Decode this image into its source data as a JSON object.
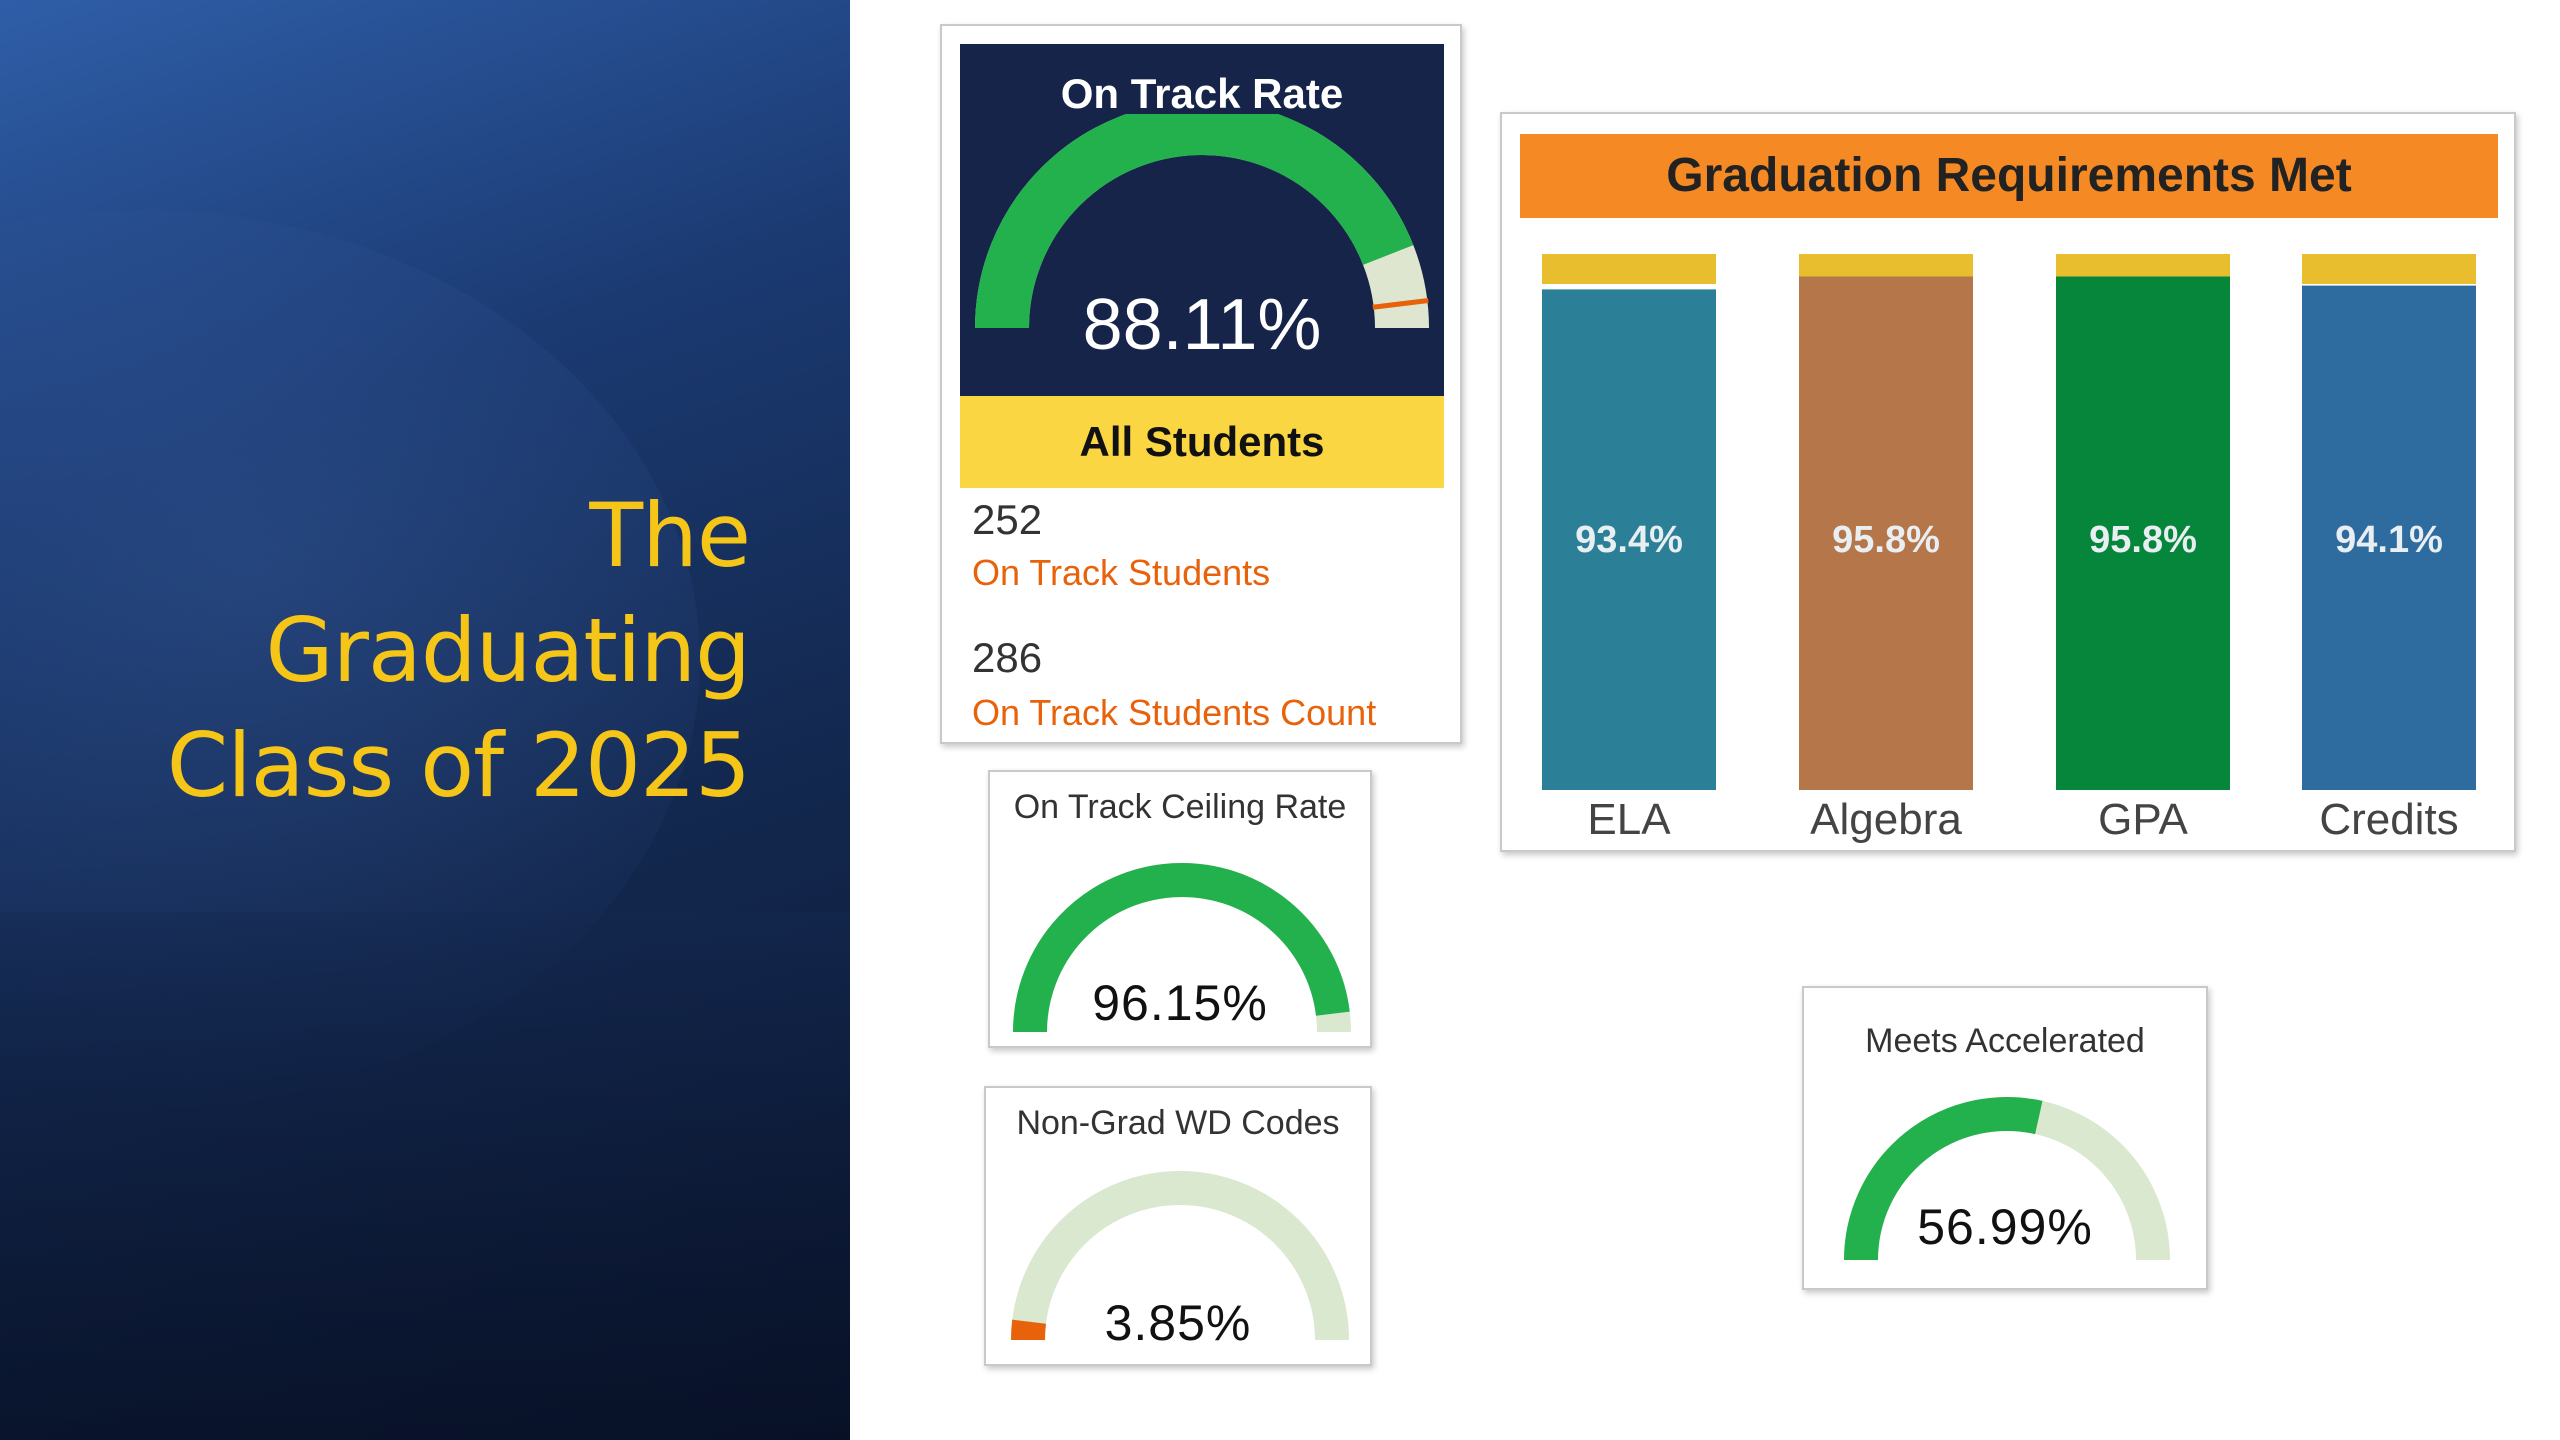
{
  "slide_title": {
    "line1": "The",
    "line2": "Graduating",
    "line3": "Class of 2025"
  },
  "on_track_rate": {
    "label": "On Track Rate",
    "value_text": "88.11%",
    "value_fraction": 0.8811,
    "group": "All Students",
    "on_track_students_value": "252",
    "on_track_students_label": "On Track Students",
    "on_track_count_value": "286",
    "on_track_count_label": "On Track Students Count"
  },
  "on_track_ceiling": {
    "label": "On Track Ceiling Rate",
    "value_text": "96.15%",
    "value_fraction": 0.9615
  },
  "non_grad": {
    "label": "Non-Grad WD Codes",
    "value_text": "3.85%",
    "value_fraction": 0.0385
  },
  "meets_accelerated": {
    "label": "Meets Accelerated",
    "value_text": "56.99%",
    "value_fraction": 0.5699
  },
  "colors": {
    "gauge_green": "#22b14c",
    "gauge_track": "#d9e8cf",
    "marker_orange": "#e8620c",
    "ela": "#2b7f97",
    "algebra": "#b5764a",
    "gpa": "#05863a",
    "credits": "#2e6b9e",
    "bar_cap": "#e8be2e"
  },
  "chart_data": {
    "type": "bar",
    "title": "Graduation Requirements Met",
    "categories": [
      "ELA",
      "Algebra",
      "GPA",
      "Credits"
    ],
    "values": [
      93.4,
      95.8,
      95.8,
      94.1
    ],
    "value_labels": [
      "93.4%",
      "95.8%",
      "95.8%",
      "94.1%"
    ],
    "ylim": [
      0,
      100
    ],
    "grid": false,
    "legend": "none"
  }
}
